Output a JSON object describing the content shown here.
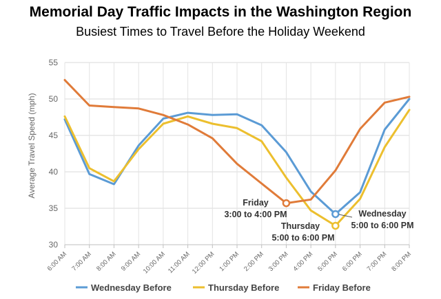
{
  "chart_data": {
    "type": "line",
    "title": "Memorial Day Traffic Impacts in the Washington Region",
    "subtitle": "Busiest Times to Travel Before the Holiday Weekend",
    "ylabel": "Average Travel Speed (mph)",
    "xlabel": "",
    "ylim": [
      30,
      55
    ],
    "yticks": [
      "55",
      "50",
      "45",
      "40",
      "35",
      "30"
    ],
    "ytick_values": [
      55,
      50,
      45,
      40,
      35,
      30
    ],
    "categories": [
      "6:00 AM",
      "7:00 AM",
      "8:00 AM",
      "9:00 AM",
      "10:00 AM",
      "11:00 AM",
      "12:00 PM",
      "1:00 PM",
      "2:00 PM",
      "3:00 PM",
      "4:00 PM",
      "5:00 PM",
      "6:00 PM",
      "7:00 PM",
      "8:00 PM"
    ],
    "series": [
      {
        "name": "Wednesday Before",
        "color": "#5b9bd5",
        "values": [
          47.2,
          39.7,
          38.3,
          43.6,
          47.3,
          48.1,
          47.8,
          47.9,
          46.4,
          42.7,
          37.3,
          34.2,
          37.2,
          45.8,
          50.0
        ]
      },
      {
        "name": "Thursday Before",
        "color": "#ecbf2e",
        "values": [
          47.6,
          40.5,
          38.7,
          43.1,
          46.6,
          47.6,
          46.6,
          46.0,
          44.2,
          39.2,
          34.7,
          32.6,
          36.3,
          43.4,
          48.5
        ]
      },
      {
        "name": "Friday Before",
        "color": "#e07b39",
        "values": [
          52.6,
          49.1,
          48.9,
          48.7,
          47.8,
          46.5,
          44.6,
          41.1,
          38.4,
          35.7,
          36.2,
          40.2,
          45.9,
          49.5,
          50.3
        ]
      }
    ],
    "annotations": [
      {
        "series": "Friday Before",
        "category": "3:00 PM",
        "line1": "Friday",
        "line2": "3:00 to 4:00 PM"
      },
      {
        "series": "Thursday Before",
        "category": "5:00 PM",
        "line1": "Thursday",
        "line2": "5:00 to 6:00 PM"
      },
      {
        "series": "Wednesday Before",
        "category": "5:00 PM",
        "line1": "Wednesday",
        "line2": "5:00 to 6:00 PM"
      }
    ],
    "grid": true,
    "legend": "bottom"
  }
}
